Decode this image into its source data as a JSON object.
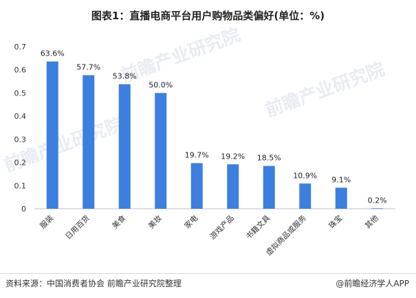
{
  "chart_data": {
    "type": "bar",
    "title": "图表1：直播电商平台用户购物品类偏好(单位：%)",
    "categories": [
      "服装",
      "日用百货",
      "美食",
      "美妆",
      "家电",
      "游戏产品",
      "书籍文具",
      "虚拟商品或服务",
      "珠宝",
      "其他"
    ],
    "values": [
      0.636,
      0.577,
      0.538,
      0.5,
      0.197,
      0.192,
      0.185,
      0.109,
      0.091,
      0.002
    ],
    "data_labels": [
      "63.6%",
      "57.7%",
      "53.8%",
      "50.0%",
      "19.7%",
      "19.2%",
      "18.5%",
      "10.9%",
      "9.1%",
      "0.2%"
    ],
    "yticks": [
      "0",
      "0.1",
      "0.2",
      "0.3",
      "0.4",
      "0.5",
      "0.6",
      "0.7"
    ],
    "ylim": [
      0,
      0.7
    ],
    "xlabel": "",
    "ylabel": "",
    "grid": false,
    "legend": "none",
    "bar_color": "#3d7fe0"
  },
  "footer": {
    "source": "资料来源：中国消费者协会 前瞻产业研究院整理",
    "credit": "@前瞻经济学人APP"
  },
  "watermark": "前瞻产业研究院"
}
